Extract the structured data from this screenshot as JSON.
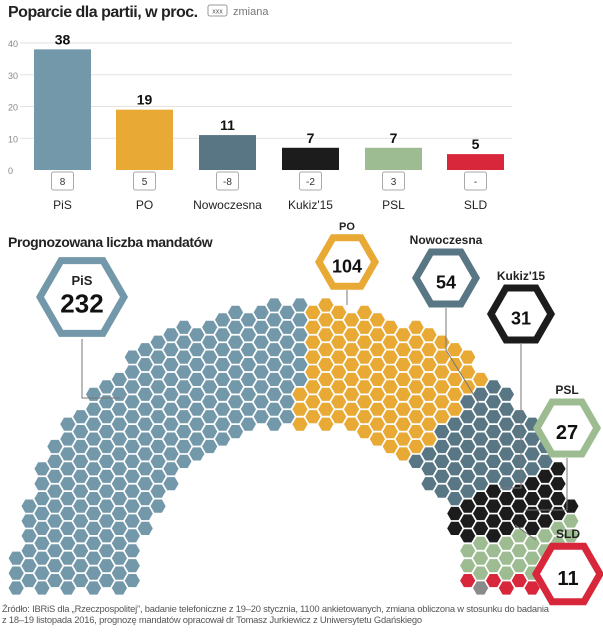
{
  "chart_data": [
    {
      "type": "bar",
      "title": "Poparcie dla partii, w proc.",
      "legend": {
        "box_label": "xxx",
        "label": "zmiana"
      },
      "categories": [
        "PiS",
        "PO",
        "Nowoczesna",
        "Kukiz'15",
        "PSL",
        "SLD"
      ],
      "values": [
        38,
        19,
        11,
        7,
        7,
        5
      ],
      "changes": [
        "8",
        "5",
        "-8",
        "-2",
        "3",
        "-"
      ],
      "colors": [
        "#7398aa",
        "#e8a935",
        "#587684",
        "#1c1c1c",
        "#9dbc92",
        "#d8263a"
      ],
      "yticks": [
        0,
        10,
        20,
        30,
        40
      ],
      "ylim": [
        0,
        40
      ],
      "grid": true
    },
    {
      "type": "hemicycle",
      "title": "Prognozowana liczba mandatów",
      "parties": [
        {
          "name": "PiS",
          "seats": 232,
          "color": "#7398aa"
        },
        {
          "name": "PO",
          "seats": 104,
          "color": "#e8a935"
        },
        {
          "name": "Nowoczesna",
          "seats": 54,
          "color": "#587684"
        },
        {
          "name": "Kukiz'15",
          "seats": 31,
          "color": "#1c1c1c"
        },
        {
          "name": "PSL",
          "seats": 27,
          "color": "#9dbc92"
        },
        {
          "name": "SLD",
          "seats": 11,
          "color": "#d8263a"
        },
        {
          "name": "",
          "seats": 1,
          "color": "#8a8a8a"
        }
      ]
    }
  ],
  "footer": {
    "line1": "Źródło: IBRiS dla „Rzeczpospolitej”, badanie telefoniczne z 19–20 stycznia, 1100 ankietowanych, zmiana obliczona w stosunku do badania",
    "line2": "z 18–19 listopada 2016, prognozę mandatów opracował  dr Tomasz Jurkiewicz z Uniwersytetu Gdańskiego"
  }
}
